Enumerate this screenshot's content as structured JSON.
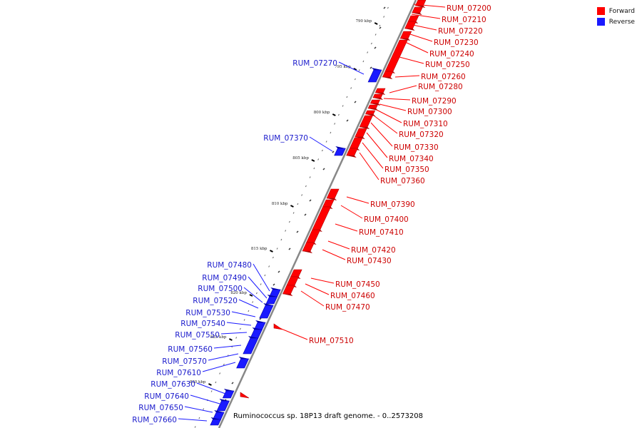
{
  "legend": {
    "forward_label": "Forward",
    "reverse_label": "Reverse",
    "forward_color": "#ff0000",
    "reverse_color": "#1a1aff"
  },
  "caption": "Ruminococcus sp. 18P13 draft genome. - 0..2573208",
  "axis_ticks": [
    "790 kbp",
    "795 kbp",
    "800 kbp",
    "805 kbp",
    "810 kbp",
    "815 kbp",
    "820 kbp",
    "825 kbp",
    "830 kbp"
  ],
  "forward_genes": [
    "RUM_07200",
    "RUM_07210",
    "RUM_07220",
    "RUM_07230",
    "RUM_07240",
    "RUM_07250",
    "RUM_07260",
    "RUM_07280",
    "RUM_07290",
    "RUM_07300",
    "RUM_07310",
    "RUM_07320",
    "RUM_07330",
    "RUM_07340",
    "RUM_07350",
    "RUM_07360",
    "RUM_07390",
    "RUM_07400",
    "RUM_07410",
    "RUM_07420",
    "RUM_07430",
    "RUM_07450",
    "RUM_07460",
    "RUM_07470",
    "RUM_07510"
  ],
  "reverse_genes": [
    "RUM_07270",
    "RUM_07370",
    "RUM_07480",
    "RUM_07490",
    "RUM_07500",
    "RUM_07520",
    "RUM_07530",
    "RUM_07540",
    "RUM_07550",
    "RUM_07560",
    "RUM_07570",
    "RUM_07610",
    "RUM_07630",
    "RUM_07640",
    "RUM_07650",
    "RUM_07660"
  ]
}
